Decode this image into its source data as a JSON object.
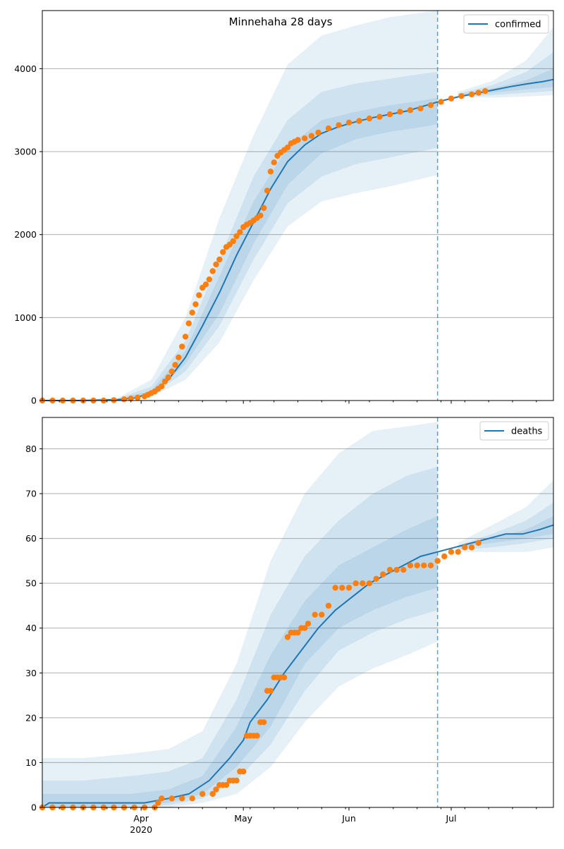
{
  "chart_data": [
    {
      "type": "line",
      "title": "Minnehaha 28 days",
      "legend": [
        "confirmed"
      ],
      "legend_placement": "top-right",
      "grid": "y",
      "xlim": [
        "2020-03-03",
        "2020-07-31"
      ],
      "ylim": [
        0,
        4700
      ],
      "yticks": [
        0,
        1000,
        2000,
        3000,
        4000
      ],
      "forecast_start": "2020-06-27",
      "colors": {
        "model": "#1f77b4",
        "observed": "#ff7f0e",
        "band": "#1f77b4"
      },
      "model": {
        "x": [
          "2020-03-03",
          "2020-03-15",
          "2020-03-25",
          "2020-03-30",
          "2020-04-04",
          "2020-04-09",
          "2020-04-14",
          "2020-04-19",
          "2020-04-24",
          "2020-04-29",
          "2020-05-04",
          "2020-05-09",
          "2020-05-14",
          "2020-05-19",
          "2020-05-24",
          "2020-05-29",
          "2020-06-03",
          "2020-06-08",
          "2020-06-13",
          "2020-06-18",
          "2020-06-23",
          "2020-06-28",
          "2020-07-03",
          "2020-07-08",
          "2020-07-13",
          "2020-07-18",
          "2020-07-23",
          "2020-07-28",
          "2020-07-31"
        ],
        "y": [
          0,
          0,
          10,
          30,
          90,
          250,
          520,
          900,
          1300,
          1750,
          2150,
          2550,
          2880,
          3080,
          3220,
          3300,
          3360,
          3410,
          3450,
          3490,
          3550,
          3610,
          3660,
          3700,
          3740,
          3780,
          3815,
          3845,
          3870
        ]
      },
      "bands": [
        {
          "name": "outer",
          "x": [
            "2020-03-03",
            "2020-03-25",
            "2020-04-04",
            "2020-04-14",
            "2020-04-24",
            "2020-05-04",
            "2020-05-14",
            "2020-05-24",
            "2020-06-03",
            "2020-06-13",
            "2020-06-23",
            "2020-06-27",
            "2020-07-03",
            "2020-07-13",
            "2020-07-23",
            "2020-07-31"
          ],
          "lower": [
            0,
            0,
            50,
            250,
            700,
            1450,
            2100,
            2400,
            2500,
            2580,
            2680,
            2720,
            3660,
            3650,
            3665,
            3680
          ],
          "upper": [
            0,
            30,
            250,
            1000,
            2200,
            3200,
            4050,
            4400,
            4520,
            4620,
            4680,
            4700,
            3720,
            3850,
            4100,
            4500
          ]
        },
        {
          "name": "middle",
          "x": [
            "2020-03-03",
            "2020-03-25",
            "2020-04-04",
            "2020-04-14",
            "2020-04-24",
            "2020-05-04",
            "2020-05-14",
            "2020-05-24",
            "2020-06-03",
            "2020-06-13",
            "2020-06-23",
            "2020-06-27",
            "2020-07-03",
            "2020-07-13",
            "2020-07-23",
            "2020-07-31"
          ],
          "lower": [
            0,
            0,
            60,
            350,
            900,
            1700,
            2380,
            2700,
            2850,
            2930,
            3010,
            3050,
            3670,
            3680,
            3710,
            3730
          ],
          "upper": [
            0,
            20,
            170,
            720,
            1700,
            2700,
            3380,
            3720,
            3820,
            3880,
            3940,
            3960,
            3700,
            3800,
            3960,
            4200
          ]
        },
        {
          "name": "inner",
          "x": [
            "2020-03-03",
            "2020-03-25",
            "2020-04-04",
            "2020-04-14",
            "2020-04-24",
            "2020-05-04",
            "2020-05-14",
            "2020-05-24",
            "2020-06-03",
            "2020-06-13",
            "2020-06-23",
            "2020-06-27",
            "2020-07-03",
            "2020-07-13",
            "2020-07-23",
            "2020-07-31"
          ],
          "lower": [
            0,
            5,
            75,
            440,
            1050,
            1890,
            2600,
            2980,
            3150,
            3240,
            3300,
            3330,
            3680,
            3710,
            3750,
            3780
          ],
          "upper": [
            0,
            15,
            120,
            600,
            1500,
            2400,
            3050,
            3380,
            3480,
            3560,
            3620,
            3650,
            3690,
            3760,
            3860,
            4000
          ]
        }
      ],
      "observed": {
        "x": [
          "2020-03-03",
          "2020-03-06",
          "2020-03-09",
          "2020-03-12",
          "2020-03-15",
          "2020-03-18",
          "2020-03-21",
          "2020-03-24",
          "2020-03-27",
          "2020-03-29",
          "2020-03-31",
          "2020-04-02",
          "2020-04-03",
          "2020-04-04",
          "2020-04-05",
          "2020-04-06",
          "2020-04-07",
          "2020-04-08",
          "2020-04-09",
          "2020-04-10",
          "2020-04-11",
          "2020-04-12",
          "2020-04-13",
          "2020-04-14",
          "2020-04-15",
          "2020-04-16",
          "2020-04-17",
          "2020-04-18",
          "2020-04-19",
          "2020-04-20",
          "2020-04-21",
          "2020-04-22",
          "2020-04-23",
          "2020-04-24",
          "2020-04-25",
          "2020-04-26",
          "2020-04-27",
          "2020-04-28",
          "2020-04-29",
          "2020-04-30",
          "2020-05-01",
          "2020-05-02",
          "2020-05-03",
          "2020-05-04",
          "2020-05-05",
          "2020-05-06",
          "2020-05-07",
          "2020-05-08",
          "2020-05-09",
          "2020-05-10",
          "2020-05-11",
          "2020-05-12",
          "2020-05-13",
          "2020-05-14",
          "2020-05-15",
          "2020-05-16",
          "2020-05-17",
          "2020-05-19",
          "2020-05-21",
          "2020-05-23",
          "2020-05-26",
          "2020-05-29",
          "2020-06-01",
          "2020-06-04",
          "2020-06-07",
          "2020-06-10",
          "2020-06-13",
          "2020-06-16",
          "2020-06-19",
          "2020-06-22",
          "2020-06-25",
          "2020-06-28",
          "2020-07-01",
          "2020-07-04",
          "2020-07-07",
          "2020-07-09",
          "2020-07-11"
        ],
        "y": [
          0,
          0,
          0,
          0,
          0,
          0,
          0,
          5,
          15,
          25,
          35,
          50,
          70,
          90,
          110,
          140,
          170,
          230,
          280,
          350,
          430,
          520,
          650,
          770,
          930,
          1060,
          1160,
          1270,
          1360,
          1400,
          1460,
          1560,
          1640,
          1700,
          1790,
          1850,
          1880,
          1920,
          1980,
          2030,
          2090,
          2120,
          2140,
          2170,
          2200,
          2230,
          2320,
          2530,
          2760,
          2870,
          2950,
          2990,
          3020,
          3050,
          3100,
          3120,
          3140,
          3160,
          3190,
          3230,
          3280,
          3320,
          3350,
          3370,
          3400,
          3420,
          3450,
          3480,
          3500,
          3520,
          3560,
          3600,
          3640,
          3670,
          3690,
          3710,
          3730
        ]
      }
    },
    {
      "type": "line",
      "title": "",
      "legend": [
        "deaths"
      ],
      "legend_placement": "top-right",
      "grid": "y",
      "xlim": [
        "2020-03-03",
        "2020-07-31"
      ],
      "xticks": [
        "Apr",
        "May",
        "Jun",
        "Jul"
      ],
      "xtick_year": "2020",
      "ylim": [
        0,
        87
      ],
      "yticks": [
        0,
        10,
        20,
        30,
        40,
        50,
        60,
        70,
        80
      ],
      "forecast_start": "2020-06-27",
      "colors": {
        "model": "#1f77b4",
        "observed": "#ff7f0e",
        "band": "#1f77b4"
      },
      "model": {
        "x": [
          "2020-03-03",
          "2020-03-05",
          "2020-04-02",
          "2020-04-02",
          "2020-04-09",
          "2020-04-09",
          "2020-04-15",
          "2020-04-21",
          "2020-04-27",
          "2020-05-01",
          "2020-05-03",
          "2020-05-08",
          "2020-05-13",
          "2020-05-18",
          "2020-05-23",
          "2020-05-28",
          "2020-06-02",
          "2020-06-07",
          "2020-06-12",
          "2020-06-17",
          "2020-06-22",
          "2020-06-27",
          "2020-07-02",
          "2020-07-07",
          "2020-07-12",
          "2020-07-17",
          "2020-07-22",
          "2020-07-27",
          "2020-07-31"
        ],
        "y": [
          0,
          1,
          1,
          1,
          2,
          2,
          3,
          6,
          11,
          15,
          19,
          24,
          30,
          35,
          40,
          44,
          47,
          50,
          52,
          54,
          56,
          57,
          58,
          59,
          60,
          61,
          61,
          62,
          63
        ]
      },
      "bands": [
        {
          "name": "outer",
          "x": [
            "2020-03-03",
            "2020-03-15",
            "2020-03-29",
            "2020-04-09",
            "2020-04-19",
            "2020-04-29",
            "2020-05-09",
            "2020-05-19",
            "2020-05-29",
            "2020-06-08",
            "2020-06-18",
            "2020-06-27",
            "2020-07-03",
            "2020-07-13",
            "2020-07-23",
            "2020-07-31"
          ],
          "lower": [
            0,
            0,
            0,
            0,
            1,
            3,
            9,
            19,
            27,
            31,
            34,
            37,
            57,
            57,
            57,
            58
          ],
          "upper": [
            11,
            11,
            12,
            13,
            17,
            32,
            55,
            70,
            79,
            84,
            85,
            86,
            59,
            63,
            67,
            73
          ]
        },
        {
          "name": "middle",
          "x": [
            "2020-03-03",
            "2020-03-15",
            "2020-03-29",
            "2020-04-09",
            "2020-04-19",
            "2020-04-29",
            "2020-05-09",
            "2020-05-19",
            "2020-05-29",
            "2020-06-08",
            "2020-06-18",
            "2020-06-27",
            "2020-07-03",
            "2020-07-13",
            "2020-07-23",
            "2020-07-31"
          ],
          "lower": [
            0,
            0,
            0,
            0.5,
            2,
            6,
            14,
            26,
            35,
            39,
            42,
            44,
            57.5,
            58,
            59,
            60
          ],
          "upper": [
            6,
            6,
            7,
            8,
            11,
            24,
            43,
            56,
            64,
            70,
            74,
            76,
            58.5,
            61,
            64,
            68
          ]
        },
        {
          "name": "inner",
          "x": [
            "2020-03-03",
            "2020-03-15",
            "2020-03-29",
            "2020-04-09",
            "2020-04-19",
            "2020-04-29",
            "2020-05-09",
            "2020-05-19",
            "2020-05-29",
            "2020-06-08",
            "2020-06-18",
            "2020-06-27",
            "2020-07-03",
            "2020-07-13",
            "2020-07-23",
            "2020-07-31"
          ],
          "lower": [
            0,
            0,
            0.5,
            1,
            3,
            9,
            18,
            32,
            40,
            44,
            47,
            49,
            58,
            59,
            60,
            61
          ],
          "upper": [
            3,
            3,
            3,
            4,
            7,
            18,
            34,
            46,
            54,
            58,
            62,
            65,
            58,
            60,
            62,
            65
          ]
        }
      ],
      "observed": {
        "x": [
          "2020-03-03",
          "2020-03-06",
          "2020-03-09",
          "2020-03-12",
          "2020-03-15",
          "2020-03-18",
          "2020-03-21",
          "2020-03-24",
          "2020-03-27",
          "2020-03-30",
          "2020-04-02",
          "2020-04-05",
          "2020-04-06",
          "2020-04-07",
          "2020-04-10",
          "2020-04-13",
          "2020-04-16",
          "2020-04-19",
          "2020-04-22",
          "2020-04-23",
          "2020-04-24",
          "2020-04-25",
          "2020-04-26",
          "2020-04-27",
          "2020-04-28",
          "2020-04-29",
          "2020-04-30",
          "2020-05-01",
          "2020-05-02",
          "2020-05-03",
          "2020-05-04",
          "2020-05-05",
          "2020-05-06",
          "2020-05-07",
          "2020-05-08",
          "2020-05-09",
          "2020-05-10",
          "2020-05-11",
          "2020-05-12",
          "2020-05-13",
          "2020-05-14",
          "2020-05-15",
          "2020-05-16",
          "2020-05-17",
          "2020-05-18",
          "2020-05-19",
          "2020-05-20",
          "2020-05-22",
          "2020-05-24",
          "2020-05-26",
          "2020-05-28",
          "2020-05-30",
          "2020-06-01",
          "2020-06-03",
          "2020-06-05",
          "2020-06-07",
          "2020-06-09",
          "2020-06-11",
          "2020-06-13",
          "2020-06-15",
          "2020-06-17",
          "2020-06-19",
          "2020-06-21",
          "2020-06-23",
          "2020-06-25",
          "2020-06-27",
          "2020-06-29",
          "2020-07-01",
          "2020-07-03",
          "2020-07-05",
          "2020-07-07",
          "2020-07-09"
        ],
        "y": [
          0,
          0,
          0,
          0,
          0,
          0,
          0,
          0,
          0,
          0,
          0,
          0,
          1,
          2,
          2,
          2,
          2,
          3,
          3,
          4,
          5,
          5,
          5,
          6,
          6,
          6,
          8,
          8,
          16,
          16,
          16,
          16,
          19,
          19,
          26,
          26,
          29,
          29,
          29,
          29,
          38,
          39,
          39,
          39,
          40,
          40,
          41,
          43,
          43,
          45,
          49,
          49,
          49,
          50,
          50,
          50,
          51,
          52,
          53,
          53,
          53,
          54,
          54,
          54,
          54,
          55,
          56,
          57,
          57,
          58,
          58,
          59
        ]
      }
    }
  ]
}
